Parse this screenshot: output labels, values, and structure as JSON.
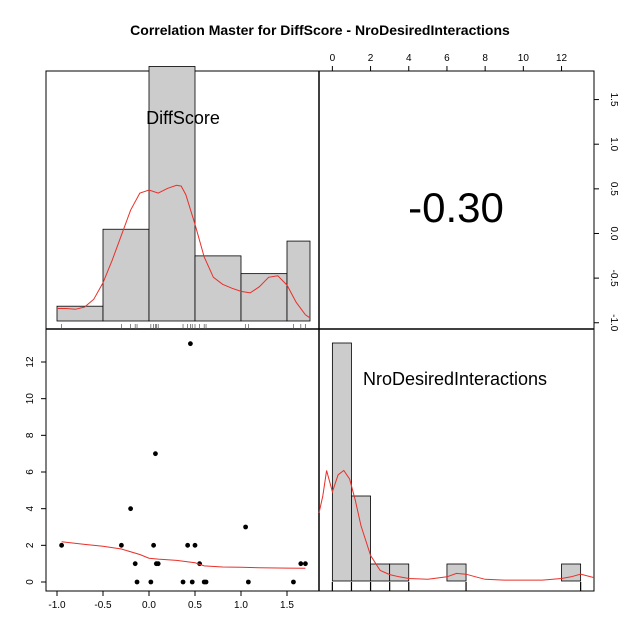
{
  "chart_data": {
    "type": "scatter-matrix",
    "title": "Correlation Master for DiffScore - NroDesiredInteractions",
    "variables": [
      "DiffScore",
      "NroDesiredInteractions"
    ],
    "correlation": "-0.30",
    "diffscore": {
      "xlim": [
        -1.0,
        1.75
      ],
      "hist_breaks": [
        -1.0,
        -0.5,
        0.0,
        0.5,
        1.0,
        1.5,
        2.0
      ],
      "hist_density": [
        0.1,
        0.62,
        1.72,
        0.44,
        0.32,
        0.54
      ],
      "right_axis_ticks": [
        "-1.0",
        "-0.5",
        "0.0",
        "0.5",
        "1.0",
        "1.5"
      ],
      "right_axis_values": [
        -1.0,
        -0.5,
        0.0,
        0.5,
        1.0,
        1.5
      ],
      "right_axis_range": [
        -1.07,
        1.82
      ],
      "bottom_ticks": [
        "-1.0",
        "-0.5",
        "0.0",
        "0.5",
        "1.0",
        "1.5"
      ],
      "bottom_tick_values": [
        -1.0,
        -0.5,
        0.0,
        0.5,
        1.0,
        1.5
      ],
      "density_curve": [
        [
          -1.0,
          0.16
        ],
        [
          -0.9,
          0.16
        ],
        [
          -0.8,
          0.15
        ],
        [
          -0.7,
          0.18
        ],
        [
          -0.6,
          0.28
        ],
        [
          -0.5,
          0.49
        ],
        [
          -0.4,
          0.78
        ],
        [
          -0.3,
          1.1
        ],
        [
          -0.2,
          1.42
        ],
        [
          -0.1,
          1.64
        ],
        [
          0.0,
          1.68
        ],
        [
          0.1,
          1.64
        ],
        [
          0.2,
          1.7
        ],
        [
          0.3,
          1.74
        ],
        [
          0.35,
          1.73
        ],
        [
          0.4,
          1.62
        ],
        [
          0.5,
          1.24
        ],
        [
          0.6,
          0.82
        ],
        [
          0.7,
          0.56
        ],
        [
          0.8,
          0.47
        ],
        [
          0.9,
          0.42
        ],
        [
          1.0,
          0.38
        ],
        [
          1.1,
          0.36
        ],
        [
          1.2,
          0.44
        ],
        [
          1.3,
          0.56
        ],
        [
          1.4,
          0.58
        ],
        [
          1.5,
          0.46
        ],
        [
          1.6,
          0.24
        ],
        [
          1.7,
          0.08
        ],
        [
          1.75,
          0.04
        ]
      ]
    },
    "nro": {
      "xlim": [
        -0.7,
        13.7
      ],
      "hist_breaks": [
        0,
        1,
        2,
        3,
        4,
        5,
        6,
        7,
        8,
        9,
        10,
        11,
        12,
        13
      ],
      "hist_density": [
        0.56,
        0.2,
        0.04,
        0.04,
        0,
        0,
        0.04,
        0,
        0,
        0,
        0,
        0,
        0.04
      ],
      "top_ticks": [
        "0",
        "2",
        "4",
        "6",
        "8",
        "10",
        "12"
      ],
      "top_tick_values": [
        0,
        2,
        4,
        6,
        8,
        10,
        12
      ],
      "left_axis_ticks": [
        "0",
        "2",
        "4",
        "6",
        "8",
        "10",
        "12"
      ],
      "left_axis_values": [
        0,
        2,
        4,
        6,
        8,
        10,
        12
      ],
      "density_curve": [
        [
          -0.7,
          0.16
        ],
        [
          -0.5,
          0.2
        ],
        [
          -0.3,
          0.26
        ],
        [
          0,
          0.21
        ],
        [
          0.3,
          0.25
        ],
        [
          0.6,
          0.26
        ],
        [
          0.9,
          0.24
        ],
        [
          1.2,
          0.19
        ],
        [
          1.5,
          0.13
        ],
        [
          2.0,
          0.06
        ],
        [
          2.5,
          0.025
        ],
        [
          3.0,
          0.015
        ],
        [
          3.5,
          0.01
        ],
        [
          4.0,
          0.006
        ],
        [
          5.0,
          0.004
        ],
        [
          6.0,
          0.01
        ],
        [
          6.5,
          0.018
        ],
        [
          7.0,
          0.016
        ],
        [
          7.5,
          0.01
        ],
        [
          8.0,
          0.004
        ],
        [
          9.0,
          0.002
        ],
        [
          10.0,
          0.002
        ],
        [
          11.0,
          0.002
        ],
        [
          12.0,
          0.006
        ],
        [
          12.5,
          0.01
        ],
        [
          13.0,
          0.016
        ],
        [
          13.7,
          0.008
        ]
      ]
    },
    "scatter": {
      "x_range": [
        -1.0,
        1.75
      ],
      "y_range": [
        -0.5,
        13.5
      ],
      "points": [
        [
          -0.95,
          2
        ],
        [
          -0.3,
          2
        ],
        [
          -0.2,
          4
        ],
        [
          -0.15,
          1
        ],
        [
          -0.13,
          0
        ],
        [
          0.02,
          0
        ],
        [
          0.05,
          2
        ],
        [
          0.07,
          7
        ],
        [
          0.08,
          1
        ],
        [
          0.1,
          1
        ],
        [
          0.37,
          0
        ],
        [
          0.42,
          2
        ],
        [
          0.45,
          13
        ],
        [
          0.47,
          0
        ],
        [
          0.5,
          2
        ],
        [
          0.55,
          1
        ],
        [
          0.6,
          0
        ],
        [
          0.62,
          0
        ],
        [
          1.05,
          3
        ],
        [
          1.08,
          0
        ],
        [
          1.57,
          0
        ],
        [
          1.65,
          1
        ],
        [
          1.7,
          1
        ]
      ],
      "loess_curve": [
        [
          -0.95,
          2.2
        ],
        [
          -0.7,
          2.05
        ],
        [
          -0.5,
          1.95
        ],
        [
          -0.3,
          1.8
        ],
        [
          -0.1,
          1.5
        ],
        [
          0.0,
          1.3
        ],
        [
          0.1,
          1.25
        ],
        [
          0.3,
          1.18
        ],
        [
          0.5,
          1.05
        ],
        [
          0.6,
          0.88
        ],
        [
          0.8,
          0.82
        ],
        [
          1.0,
          0.8
        ],
        [
          1.2,
          0.78
        ],
        [
          1.5,
          0.76
        ],
        [
          1.7,
          0.75
        ]
      ]
    },
    "rug_diffscore": [
      -0.95,
      -0.3,
      -0.2,
      -0.15,
      -0.13,
      0.02,
      0.05,
      0.07,
      0.08,
      0.1,
      0.37,
      0.42,
      0.45,
      0.47,
      0.5,
      0.55,
      0.6,
      0.62,
      1.05,
      1.08,
      1.57,
      1.65,
      1.7
    ],
    "rug_nro": [
      0,
      1,
      2,
      3,
      4,
      7,
      13
    ],
    "colors": {
      "bar_fill": "#cccccc",
      "bar_stroke": "#000000",
      "curve": "#e8302a",
      "point": "#000000",
      "frame": "#000000"
    }
  }
}
